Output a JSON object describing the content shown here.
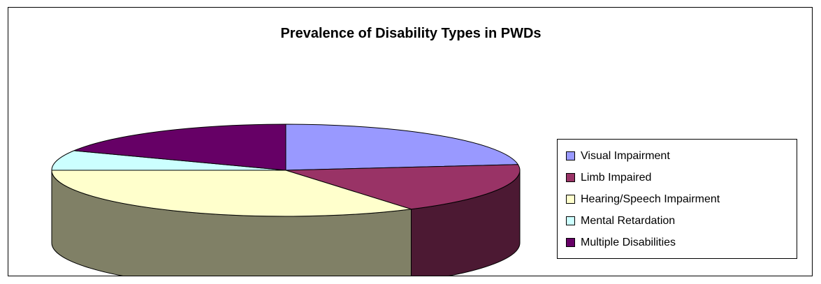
{
  "chart_data": {
    "type": "pie",
    "title": "Prevalence of Disability Types in PWDs",
    "legend_position": "right",
    "three_d": true,
    "categories": [
      "Visual Impairment",
      "Limb Impaired",
      "Hearing/Speech Impairment",
      "Mental Retardation",
      "Multiple Disabilities"
    ],
    "values": [
      23,
      18,
      34,
      7,
      18
    ],
    "colors": {
      "top": [
        "#9999FF",
        "#993366",
        "#FFFFCC",
        "#CCFFFF",
        "#660066"
      ],
      "side": [
        "#4C4C80",
        "#4C1933",
        "#808066",
        "#668080",
        "#330033"
      ]
    }
  }
}
